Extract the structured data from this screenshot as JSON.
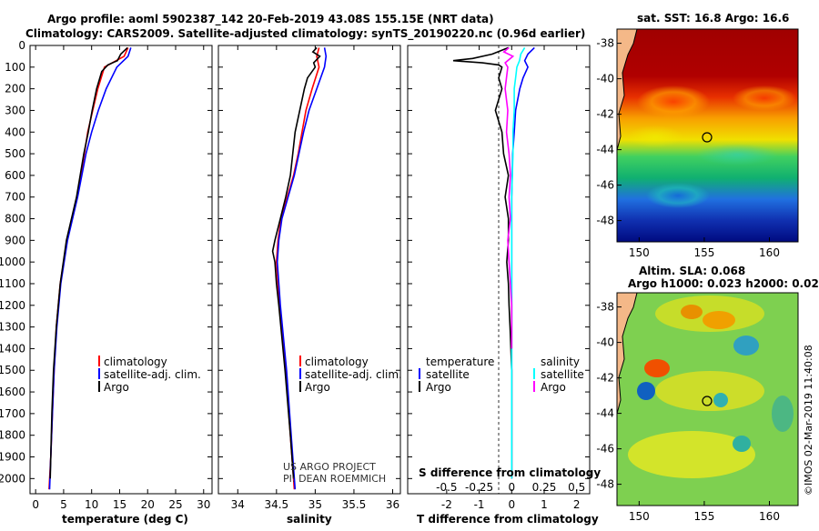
{
  "title_line1": "Argo profile: aoml 5902387_142 20-Feb-2019 43.08S 155.15E (NRT data)",
  "title_line2": "Climatology: CARS2009. Satellite-adjusted climatology: synTS_20190220.nc (0.96d earlier)",
  "depth_ticks": [
    "0",
    "100",
    "200",
    "300",
    "400",
    "500",
    "600",
    "700",
    "800",
    "900",
    "1000",
    "1100",
    "1200",
    "1300",
    "1400",
    "1500",
    "1600",
    "1700",
    "1800",
    "1900",
    "2000"
  ],
  "colors": {
    "climatology": "#ff0000",
    "satellite": "#0000ff",
    "argo": "#000000",
    "s_satellite": "#00ffff",
    "s_argo": "#ff00ff"
  },
  "chart_data": [
    {
      "type": "line",
      "name": "temperature",
      "xlabel": "temperature (deg C)",
      "xlim": [
        -1,
        31.5
      ],
      "ylim": [
        0,
        2070
      ],
      "x_ticks": [
        "0",
        "5",
        "10",
        "15",
        "20",
        "25",
        "30"
      ],
      "legend": {
        "position": "bottom-right",
        "entries": [
          "climatology",
          "satellite-adj. clim.",
          "Argo"
        ]
      },
      "series": [
        {
          "name": "climatology",
          "depth": [
            10,
            50,
            100,
            200,
            300,
            400,
            500,
            700,
            900,
            1100,
            1300,
            1500,
            1700,
            1900,
            2050
          ],
          "values": [
            16.5,
            15.8,
            12.3,
            11.1,
            10.2,
            9.3,
            8.7,
            7.4,
            5.6,
            4.4,
            3.7,
            3.3,
            3.0,
            2.7,
            2.4
          ]
        },
        {
          "name": "satellite-adj. clim.",
          "depth": [
            10,
            50,
            100,
            200,
            300,
            400,
            500,
            700,
            900,
            1100,
            1300,
            1500,
            1700,
            1900,
            2050
          ],
          "values": [
            17.0,
            16.5,
            14.5,
            12.6,
            11.2,
            10.0,
            9.0,
            7.5,
            5.7,
            4.5,
            3.8,
            3.3,
            3.0,
            2.7,
            2.5
          ]
        },
        {
          "name": "Argo",
          "depth": [
            10,
            40,
            70,
            90,
            120,
            200,
            300,
            400,
            500,
            700,
            900,
            1100,
            1300,
            1500,
            1700,
            1900,
            2000
          ],
          "values": [
            16.4,
            15.2,
            14.6,
            12.9,
            11.8,
            10.9,
            10.1,
            9.4,
            8.6,
            7.3,
            5.5,
            4.4,
            3.7,
            3.2,
            2.9,
            2.7,
            2.6
          ]
        }
      ]
    },
    {
      "type": "line",
      "name": "salinity",
      "xlabel": "salinity",
      "xlim": [
        33.75,
        36.1
      ],
      "ylim": [
        0,
        2070
      ],
      "x_ticks": [
        "34",
        "34.5",
        "35",
        "35.5",
        "36"
      ],
      "legend": {
        "position": "bottom-right",
        "entries": [
          "climatology",
          "satellite-adj. clim.",
          "Argo"
        ]
      },
      "series": [
        {
          "name": "climatology",
          "depth": [
            10,
            50,
            100,
            200,
            300,
            400,
            500,
            600,
            700,
            800,
            900,
            1000,
            1200,
            1500,
            1800,
            2050
          ],
          "values": [
            35.05,
            35.02,
            35.05,
            34.96,
            34.88,
            34.83,
            34.78,
            34.72,
            34.64,
            34.56,
            34.52,
            34.5,
            34.54,
            34.62,
            34.68,
            34.73
          ]
        },
        {
          "name": "satellite-adj. clim.",
          "depth": [
            10,
            50,
            100,
            200,
            300,
            400,
            500,
            600,
            700,
            800,
            900,
            1000,
            1200,
            1500,
            1800,
            2050
          ],
          "values": [
            35.12,
            35.14,
            35.12,
            35.02,
            34.92,
            34.85,
            34.79,
            34.73,
            34.65,
            34.57,
            34.53,
            34.51,
            34.55,
            34.63,
            34.69,
            34.74
          ]
        },
        {
          "name": "Argo",
          "depth": [
            10,
            30,
            50,
            80,
            100,
            150,
            200,
            300,
            400,
            500,
            600,
            700,
            800,
            900,
            950,
            1000,
            1100,
            1200,
            1500,
            1800,
            2000
          ],
          "values": [
            35.02,
            34.97,
            35.06,
            34.98,
            35.0,
            34.9,
            34.86,
            34.8,
            34.74,
            34.71,
            34.68,
            34.62,
            34.55,
            34.48,
            34.45,
            34.48,
            34.5,
            34.53,
            34.61,
            34.68,
            34.72
          ]
        }
      ]
    },
    {
      "type": "line",
      "name": "differences",
      "xlabel": "T difference from climatology",
      "xlabel_top": "S difference from climatology",
      "xlim": [
        -3.2,
        2.4
      ],
      "ylim": [
        0,
        2070
      ],
      "x_ticks": [
        "-2",
        "-1",
        "0",
        "1",
        "2"
      ],
      "x_ticks_top": [
        "-0.5",
        "-0.25",
        "0",
        "0.25",
        "0.5"
      ],
      "legend": {
        "position": "bottom",
        "header_t": "temperature",
        "header_s": "salinity",
        "entries_t": [
          "satellite",
          "Argo"
        ],
        "entries_s": [
          "satellite",
          "Argo"
        ]
      },
      "series": [
        {
          "name": "T satellite",
          "depth": [
            10,
            40,
            70,
            100,
            150,
            200,
            300,
            400,
            500,
            700,
            900,
            1100,
            1300,
            1600,
            2000
          ],
          "values": [
            0.7,
            0.5,
            0.4,
            0.5,
            0.35,
            0.25,
            0.12,
            0.08,
            0.03,
            0.0,
            0.0,
            0.0,
            0.0,
            0.0,
            0.0
          ]
        },
        {
          "name": "T Argo",
          "depth": [
            10,
            40,
            60,
            70,
            80,
            90,
            100,
            150,
            200,
            300,
            400,
            500,
            600,
            700,
            800,
            900,
            1000,
            1100,
            1200,
            1300,
            1500,
            1700,
            1900,
            2000
          ],
          "values": [
            -0.1,
            -0.6,
            -1.2,
            -1.8,
            -0.9,
            -0.4,
            -0.3,
            -0.4,
            -0.3,
            -0.5,
            -0.3,
            -0.25,
            -0.1,
            -0.2,
            -0.1,
            -0.1,
            -0.15,
            -0.1,
            -0.08,
            -0.05,
            0.0,
            0.0,
            0.0,
            0.0
          ]
        },
        {
          "name": "S satellite",
          "depth": [
            10,
            40,
            70,
            100,
            150,
            200,
            300,
            400,
            500,
            700,
            900,
            1100,
            1300,
            1600,
            2000
          ],
          "values": [
            0.1,
            0.07,
            0.06,
            0.04,
            0.03,
            0.02,
            0.02,
            0.01,
            0.01,
            0.0,
            0.0,
            0.0,
            0.0,
            0.0,
            0.0
          ]
        },
        {
          "name": "S Argo",
          "depth": [
            10,
            30,
            50,
            80,
            100,
            200,
            300,
            400,
            500,
            600,
            700,
            800,
            900,
            1000,
            1100,
            1200,
            1300,
            1400
          ],
          "values": [
            -0.02,
            -0.06,
            0.01,
            -0.05,
            -0.03,
            -0.05,
            -0.03,
            -0.04,
            -0.02,
            -0.01,
            -0.02,
            -0.01,
            -0.03,
            -0.02,
            -0.01,
            0.0,
            0.0,
            0.0
          ]
        }
      ]
    },
    {
      "type": "heatmap",
      "name": "sst_map",
      "title": "sat. SST: 16.8 Argo: 16.6",
      "x_ticks": [
        "150",
        "155",
        "160"
      ],
      "y_ticks": [
        "-38",
        "-40",
        "-42",
        "-44",
        "-46",
        "-48"
      ],
      "xlim": [
        148.3,
        162.2
      ],
      "ylim": [
        -49.2,
        -37.2
      ],
      "marker": {
        "lon": 155.15,
        "lat": -43.08
      }
    },
    {
      "type": "heatmap",
      "name": "sla_map",
      "title_line1": "Altim. SLA: 0.068",
      "title_line2": "Argo h1000: 0.023 h2000: 0.02",
      "x_ticks": [
        "150",
        "155",
        "160"
      ],
      "y_ticks": [
        "-38",
        "-40",
        "-42",
        "-44",
        "-46",
        "-48"
      ],
      "xlim": [
        148.3,
        162.2
      ],
      "ylim": [
        -49.2,
        -37.2
      ],
      "marker": {
        "lon": 155.15,
        "lat": -43.08
      }
    }
  ],
  "annotations": {
    "project": "US ARGO PROJECT",
    "pi": "PI: DEAN ROEMMICH",
    "credit": "©IMOS 02-Mar-2019 11:40:08"
  }
}
